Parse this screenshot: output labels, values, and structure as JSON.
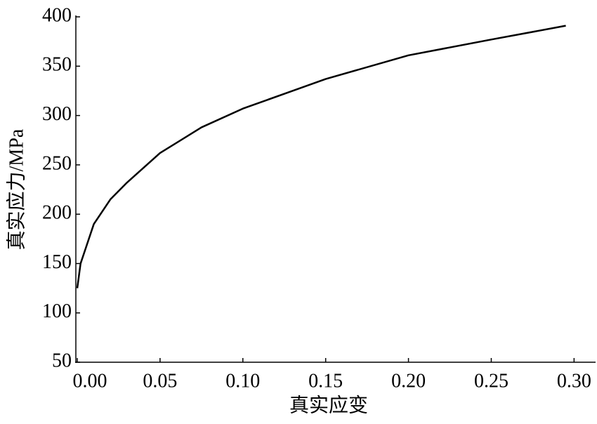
{
  "chart_data": {
    "type": "line",
    "xlabel": "真实应变",
    "ylabel": "真实应力/MPa",
    "x": [
      0,
      0.002,
      0.005,
      0.01,
      0.02,
      0.03,
      0.05,
      0.075,
      0.1,
      0.15,
      0.2,
      0.25,
      0.295
    ],
    "series": [
      {
        "color": "#000000",
        "values": [
          125,
          150,
          165,
          190,
          215,
          232,
          262,
          288,
          307,
          337,
          361,
          377,
          391
        ]
      }
    ],
    "xlim": [
      0,
      0.313
    ],
    "ylim": [
      50,
      400
    ],
    "xticks": [
      {
        "value": 0,
        "label": "0.00"
      },
      {
        "value": 0.05,
        "label": "0.05"
      },
      {
        "value": 0.1,
        "label": "0.10"
      },
      {
        "value": 0.15,
        "label": "0.15"
      },
      {
        "value": 0.2,
        "label": "0.20"
      },
      {
        "value": 0.25,
        "label": "0.25"
      },
      {
        "value": 0.3,
        "label": "0.30"
      }
    ],
    "yticks": [
      50,
      100,
      150,
      200,
      250,
      300,
      350,
      400
    ]
  }
}
